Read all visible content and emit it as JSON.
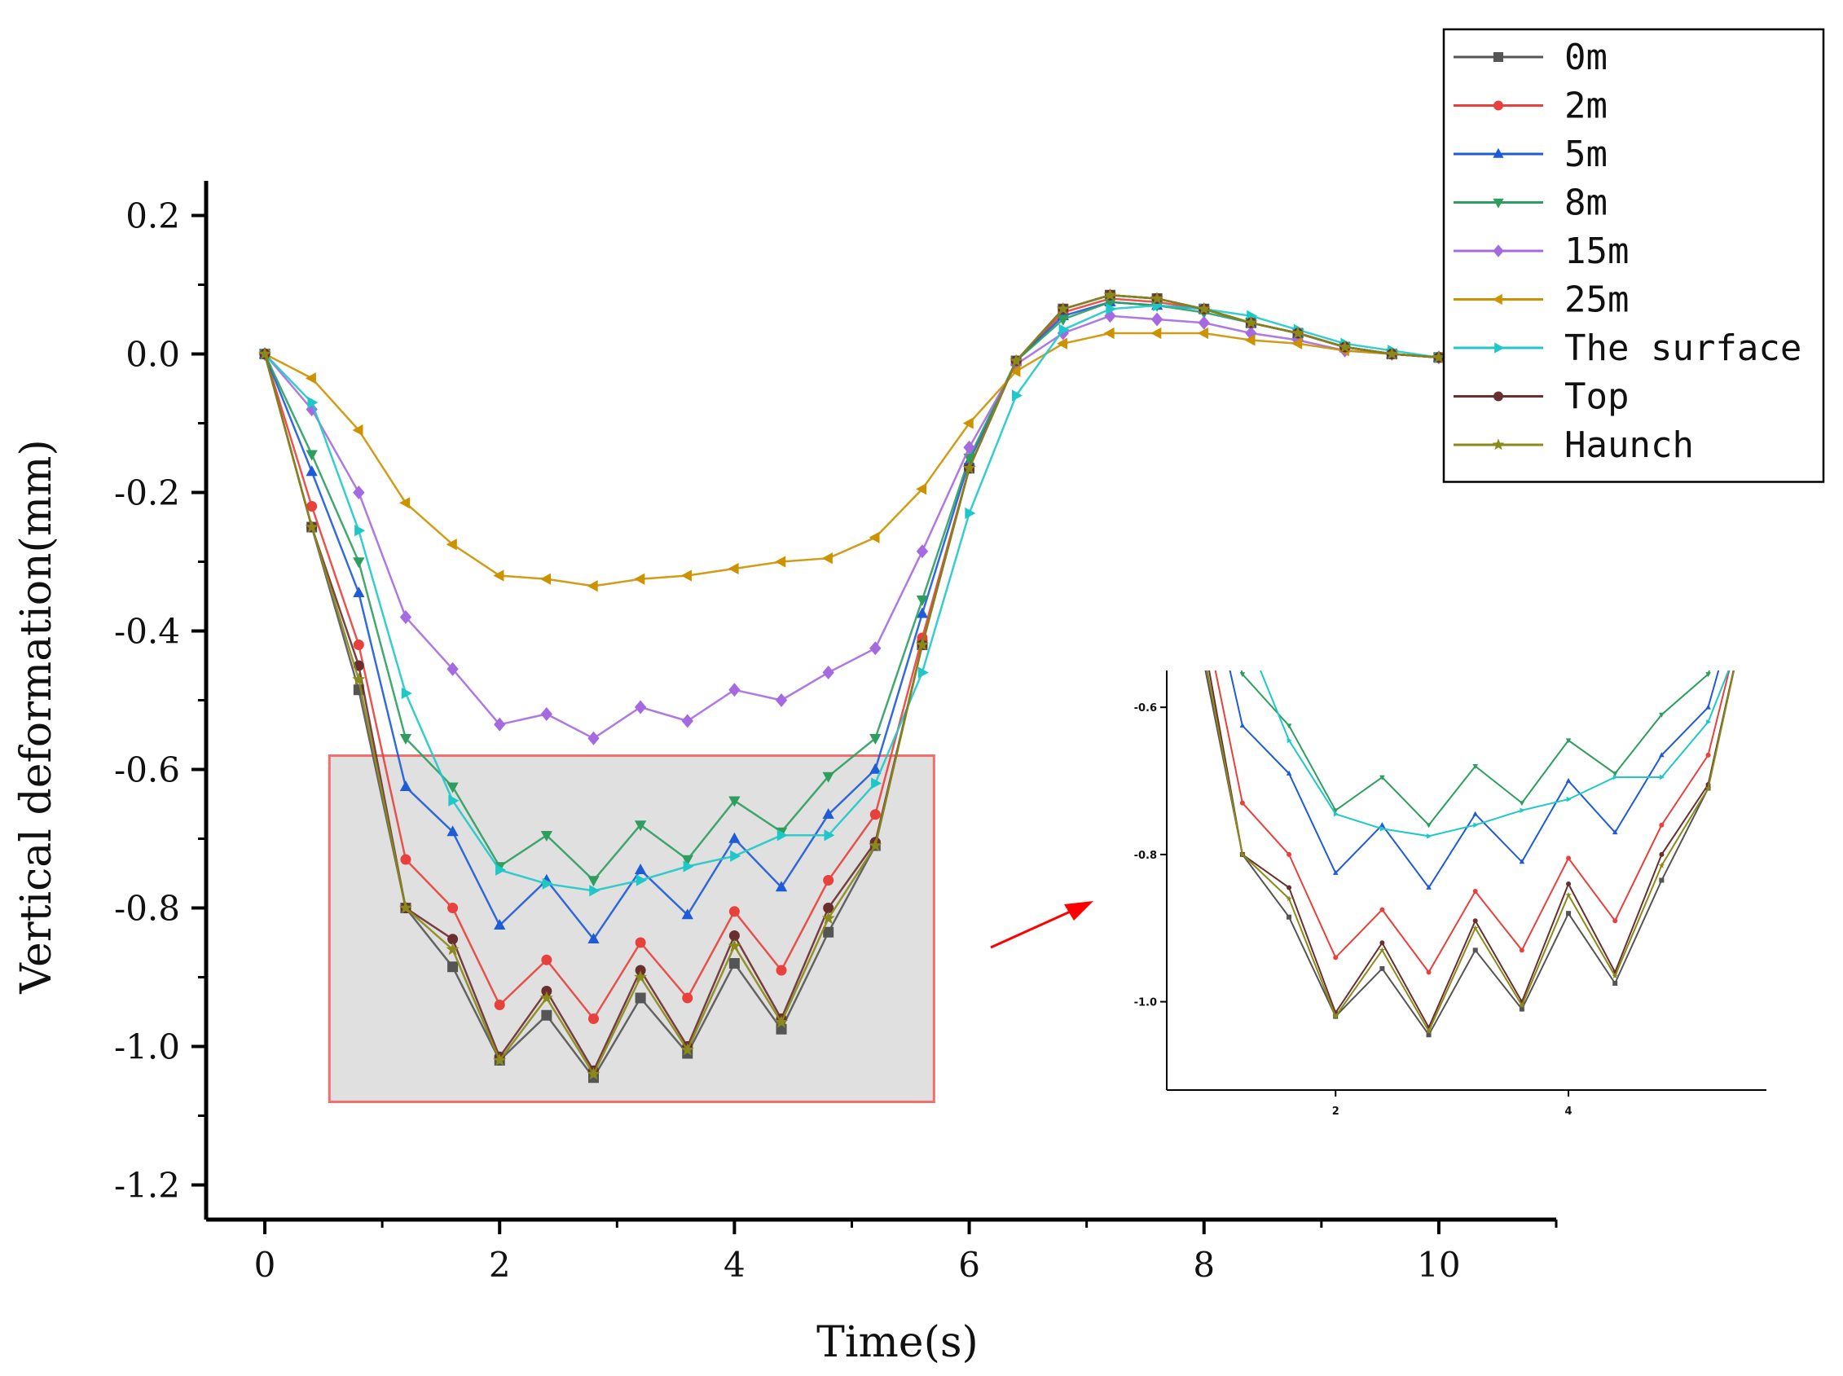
{
  "chart_data": {
    "type": "line",
    "title": "",
    "xlabel": "Time(s)",
    "ylabel": "Vertical deformation(mm)",
    "xlim": [
      -0.5,
      11
    ],
    "ylim": [
      -1.25,
      0.25
    ],
    "x_ticks": [
      "0",
      "2",
      "4",
      "6",
      "8",
      "10"
    ],
    "y_ticks": [
      "0.2",
      "0.0",
      "-0.2",
      "-0.4",
      "-0.6",
      "-0.8",
      "-1.0",
      "-1.2"
    ],
    "legend_position": "top-right",
    "x": [
      0,
      0.4,
      0.8,
      1.2,
      1.6,
      2.0,
      2.4,
      2.8,
      3.2,
      3.6,
      4.0,
      4.4,
      4.8,
      5.2,
      5.6,
      6.0,
      6.4,
      6.8,
      7.2,
      7.6,
      8.0,
      8.4,
      8.8,
      9.2,
      9.6,
      10.0
    ],
    "series": [
      {
        "name": "0m",
        "color": "#555555",
        "marker": "square",
        "values": [
          0,
          -0.25,
          -0.485,
          -0.8,
          -0.885,
          -1.02,
          -0.955,
          -1.045,
          -0.93,
          -1.01,
          -0.88,
          -0.975,
          -0.835,
          -0.71,
          -0.42,
          -0.165,
          -0.01,
          0.065,
          0.085,
          0.08,
          0.065,
          0.045,
          0.03,
          0.01,
          0.0,
          -0.005
        ]
      },
      {
        "name": "2m",
        "color": "#e8413c",
        "marker": "circle",
        "values": [
          0,
          -0.22,
          -0.42,
          -0.73,
          -0.8,
          -0.94,
          -0.875,
          -0.96,
          -0.85,
          -0.93,
          -0.805,
          -0.89,
          -0.76,
          -0.665,
          -0.41,
          -0.165,
          -0.01,
          0.06,
          0.08,
          0.075,
          0.065,
          0.045,
          0.03,
          0.01,
          0.0,
          -0.005
        ]
      },
      {
        "name": "5m",
        "color": "#1e5bd6",
        "marker": "triangle-up",
        "values": [
          0,
          -0.17,
          -0.345,
          -0.625,
          -0.69,
          -0.825,
          -0.76,
          -0.845,
          -0.745,
          -0.81,
          -0.7,
          -0.77,
          -0.665,
          -0.6,
          -0.375,
          -0.155,
          -0.01,
          0.055,
          0.075,
          0.07,
          0.065,
          0.045,
          0.03,
          0.01,
          0.0,
          -0.005
        ]
      },
      {
        "name": "8m",
        "color": "#2e9e5f",
        "marker": "triangle-down",
        "values": [
          0,
          -0.145,
          -0.3,
          -0.555,
          -0.625,
          -0.74,
          -0.695,
          -0.76,
          -0.68,
          -0.73,
          -0.645,
          -0.69,
          -0.61,
          -0.555,
          -0.355,
          -0.15,
          -0.01,
          0.05,
          0.075,
          0.07,
          0.06,
          0.045,
          0.03,
          0.01,
          0.0,
          -0.005
        ]
      },
      {
        "name": "15m",
        "color": "#a56ae0",
        "marker": "diamond",
        "values": [
          0,
          -0.08,
          -0.2,
          -0.38,
          -0.455,
          -0.535,
          -0.52,
          -0.555,
          -0.51,
          -0.53,
          -0.485,
          -0.5,
          -0.46,
          -0.425,
          -0.285,
          -0.135,
          -0.015,
          0.03,
          0.055,
          0.05,
          0.045,
          0.03,
          0.02,
          0.005,
          0.0,
          -0.005
        ]
      },
      {
        "name": "25m",
        "color": "#cc9200",
        "marker": "triangle-left",
        "values": [
          0,
          -0.035,
          -0.11,
          -0.215,
          -0.275,
          -0.32,
          -0.325,
          -0.335,
          -0.325,
          -0.32,
          -0.31,
          -0.3,
          -0.295,
          -0.265,
          -0.195,
          -0.1,
          -0.025,
          0.015,
          0.03,
          0.03,
          0.03,
          0.02,
          0.015,
          0.005,
          0.0,
          -0.005
        ]
      },
      {
        "name": "The surface",
        "color": "#1fc8c8",
        "marker": "triangle-right",
        "values": [
          0,
          -0.07,
          -0.255,
          -0.49,
          -0.645,
          -0.745,
          -0.765,
          -0.775,
          -0.76,
          -0.74,
          -0.725,
          -0.695,
          -0.695,
          -0.62,
          -0.46,
          -0.23,
          -0.06,
          0.035,
          0.065,
          0.07,
          0.065,
          0.055,
          0.035,
          0.015,
          0.005,
          -0.005
        ]
      },
      {
        "name": "Top",
        "color": "#6b2e2e",
        "marker": "circle",
        "values": [
          0,
          -0.25,
          -0.45,
          -0.8,
          -0.845,
          -1.015,
          -0.92,
          -1.035,
          -0.89,
          -1.0,
          -0.84,
          -0.96,
          -0.8,
          -0.705,
          -0.42,
          -0.165,
          -0.01,
          0.065,
          0.085,
          0.08,
          0.065,
          0.045,
          0.03,
          0.01,
          0.0,
          -0.005
        ]
      },
      {
        "name": "Haunch",
        "color": "#8a8a1a",
        "marker": "star",
        "values": [
          0,
          -0.25,
          -0.47,
          -0.8,
          -0.86,
          -1.02,
          -0.93,
          -1.04,
          -0.9,
          -1.005,
          -0.855,
          -0.965,
          -0.815,
          -0.71,
          -0.42,
          -0.165,
          -0.01,
          0.065,
          0.085,
          0.08,
          0.065,
          0.045,
          0.03,
          0.01,
          0.0,
          -0.005
        ]
      }
    ],
    "annotation": {
      "highlight_region": {
        "x": [
          0.55,
          5.7
        ],
        "y": [
          -1.08,
          -0.58
        ]
      },
      "inset": {
        "description": "zoom of highlighted region",
        "x_ticks": [
          "2",
          "4"
        ],
        "y_ticks": [
          "-0.6",
          "-0.8",
          "-1.0"
        ],
        "xlim": [
          0.55,
          5.7
        ],
        "ylim": [
          -1.12,
          -0.55
        ]
      }
    }
  }
}
